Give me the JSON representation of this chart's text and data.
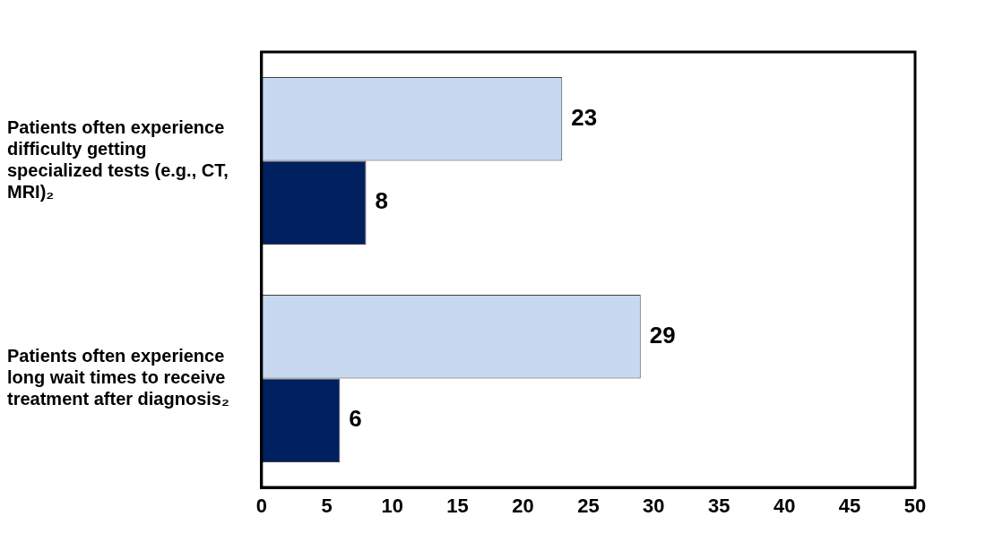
{
  "chart_data": {
    "type": "bar",
    "orientation": "horizontal",
    "categories": [
      "Patients often experience difficulty getting specialized tests (e.g., CT, MRI)₂",
      "Patients often experience long wait times to receive treatment after diagnosis₂"
    ],
    "series": [
      {
        "color": "#c6d9f1",
        "values": [
          23,
          29
        ]
      },
      {
        "color": "#002060",
        "values": [
          8,
          6
        ]
      }
    ],
    "xlim": [
      0,
      50
    ],
    "xticks": [
      0,
      5,
      10,
      15,
      20,
      25,
      30,
      35,
      40,
      45,
      50
    ],
    "grid": false,
    "legend": false,
    "data_labels": true
  }
}
